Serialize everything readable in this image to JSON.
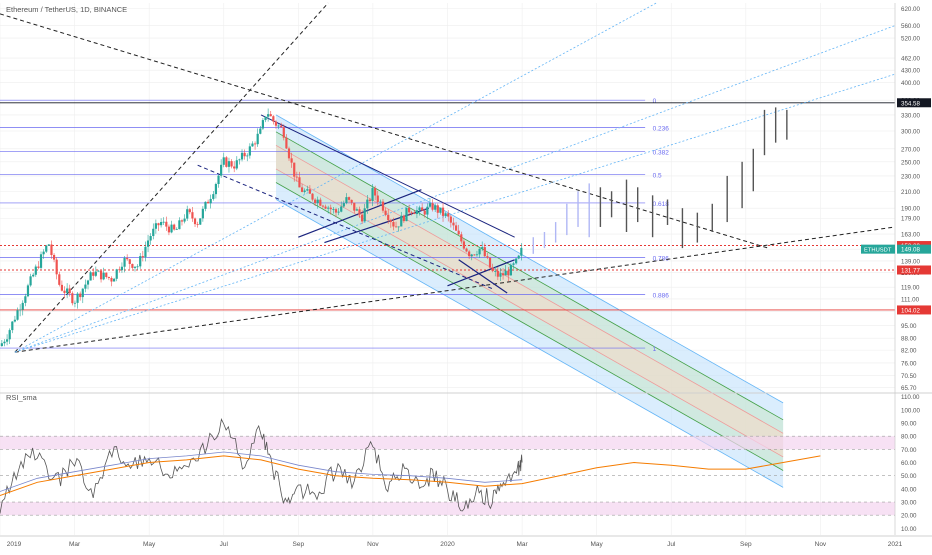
{
  "symbol_title": "Ethereum / TetherUS, 1D, BINANCE",
  "rsi_title": "RSI_sma",
  "colors": {
    "up": "#26a69a",
    "down": "#ef5350",
    "fib": "#6a6af0",
    "red_level": "#e53935",
    "channel_fill": "#bbdefb",
    "channel_mid": "#c8e6c9",
    "channel_core": "#f8d9c4",
    "rsi_line": "#555555",
    "rsi_sma": "#f57c00",
    "rsi_sma2": "#7986cb",
    "rsi_band": "#f3d4f0",
    "grid": "#eeeeee",
    "ghost": "#b0b7f5"
  },
  "chart_data": [
    {
      "type": "candlestick",
      "title": "Ethereum / TetherUS, 1D, BINANCE",
      "x_ticks": [
        "2019",
        "Mar",
        "May",
        "Jul",
        "Sep",
        "Nov",
        "2020",
        "Mar",
        "May",
        "Jul",
        "Sep",
        "Nov",
        "2021"
      ],
      "y_scale": "log",
      "y_ticks": [
        620.0,
        560.0,
        520.0,
        462.0,
        430.0,
        400.0,
        360.0,
        330.0,
        300.0,
        270.0,
        250.0,
        230.0,
        210.0,
        190.0,
        179.0,
        163.0,
        149.0,
        139.0,
        130.0,
        119.0,
        111.0,
        103.0,
        95.0,
        88.0,
        82.0,
        76.0,
        70.5,
        65.7
      ],
      "fib_levels": [
        {
          "label": "0",
          "price": 360.0
        },
        {
          "label": "0.236",
          "price": 306.0
        },
        {
          "label": "0.382",
          "price": 266.0
        },
        {
          "label": "0.5",
          "price": 232.0
        },
        {
          "label": "0.618",
          "price": 196.0
        },
        {
          "label": "0.786",
          "price": 142.0
        },
        {
          "label": "0.886",
          "price": 114.0
        },
        {
          "label": "1",
          "price": 83.0
        }
      ],
      "price_labels": [
        {
          "text": "354.58",
          "price": 354.58,
          "color": "#131722"
        },
        {
          "text": "152.29",
          "price": 152.29,
          "color": "#e53935"
        },
        {
          "text": "149.08",
          "price": 149.08,
          "color": "#26a69a",
          "prefix": "ETHUSDT"
        },
        {
          "text": "131.77",
          "price": 131.77,
          "color": "#e53935"
        },
        {
          "text": "104.02",
          "price": 104.02,
          "color": "#e53935"
        }
      ],
      "horizontal_levels": [
        {
          "price": 354.58,
          "style": "solid",
          "color": "#131722"
        },
        {
          "price": 152.29,
          "style": "dotted",
          "color": "#e53935"
        },
        {
          "price": 131.77,
          "style": "dotted",
          "color": "#e53935"
        },
        {
          "price": 104.02,
          "style": "solid",
          "color": "#e53935"
        }
      ],
      "price_series": [
        [
          0,
          84
        ],
        [
          0.2,
          90
        ],
        [
          0.5,
          105
        ],
        [
          1.0,
          135
        ],
        [
          1.3,
          155
        ],
        [
          1.6,
          120
        ],
        [
          2.0,
          110
        ],
        [
          2.5,
          130
        ],
        [
          3.0,
          125
        ],
        [
          3.3,
          140
        ],
        [
          3.7,
          135
        ],
        [
          4.0,
          160
        ],
        [
          4.3,
          175
        ],
        [
          4.7,
          165
        ],
        [
          5.0,
          185
        ],
        [
          5.3,
          175
        ],
        [
          5.7,
          210
        ],
        [
          6.0,
          250
        ],
        [
          6.3,
          245
        ],
        [
          6.7,
          270
        ],
        [
          7.0,
          300
        ],
        [
          7.15,
          340
        ],
        [
          7.3,
          320
        ],
        [
          7.6,
          300
        ],
        [
          7.8,
          250
        ],
        [
          8.0,
          215
        ],
        [
          8.3,
          205
        ],
        [
          8.7,
          195
        ],
        [
          9.0,
          185
        ],
        [
          9.3,
          200
        ],
        [
          9.7,
          180
        ],
        [
          10.0,
          210
        ],
        [
          10.3,
          190
        ],
        [
          10.6,
          170
        ],
        [
          11.0,
          190
        ],
        [
          11.3,
          185
        ],
        [
          11.6,
          192
        ],
        [
          12.0,
          180
        ],
        [
          12.3,
          160
        ],
        [
          12.6,
          145
        ],
        [
          12.9,
          150
        ],
        [
          13.2,
          130
        ],
        [
          13.4,
          127
        ],
        [
          13.7,
          132
        ],
        [
          13.9,
          140
        ],
        [
          14.0,
          149
        ]
      ],
      "projection_bars": [
        [
          14.3,
          145,
          160
        ],
        [
          14.6,
          150,
          165
        ],
        [
          14.9,
          155,
          175
        ],
        [
          15.2,
          162,
          195
        ],
        [
          15.5,
          170,
          210
        ],
        [
          15.8,
          160,
          220
        ],
        [
          16.1,
          170,
          215
        ],
        [
          16.4,
          180,
          210
        ],
        [
          16.8,
          165,
          225
        ],
        [
          17.1,
          175,
          215
        ],
        [
          17.5,
          160,
          205
        ],
        [
          17.9,
          172,
          200
        ],
        [
          18.3,
          150,
          190
        ],
        [
          18.7,
          155,
          185
        ],
        [
          19.1,
          165,
          195
        ],
        [
          19.5,
          175,
          230
        ],
        [
          19.9,
          190,
          250
        ],
        [
          20.2,
          210,
          270
        ],
        [
          20.5,
          260,
          340
        ],
        [
          20.8,
          280,
          345
        ],
        [
          21.1,
          285,
          340
        ]
      ],
      "rsi": {
        "title": "RSI_sma",
        "y_ticks": [
          110.0,
          100.0,
          90.0,
          80.0,
          70.0,
          60.0,
          50.0,
          40.0,
          30.0,
          20.0,
          10.0
        ],
        "band_upper": [
          70.0,
          80.0
        ],
        "band_lower": [
          20.0,
          30.0
        ],
        "rsi_values": [
          [
            0,
            25
          ],
          [
            0.5,
            55
          ],
          [
            1.0,
            70
          ],
          [
            1.5,
            45
          ],
          [
            2.0,
            60
          ],
          [
            2.5,
            40
          ],
          [
            3.0,
            70
          ],
          [
            3.5,
            55
          ],
          [
            4.0,
            65
          ],
          [
            4.5,
            50
          ],
          [
            5.0,
            62
          ],
          [
            5.5,
            72
          ],
          [
            6.0,
            90
          ],
          [
            6.5,
            60
          ],
          [
            7.0,
            85
          ],
          [
            7.3,
            55
          ],
          [
            7.7,
            30
          ],
          [
            8.0,
            40
          ],
          [
            8.5,
            35
          ],
          [
            9.0,
            55
          ],
          [
            9.5,
            45
          ],
          [
            10.0,
            75
          ],
          [
            10.4,
            40
          ],
          [
            10.8,
            55
          ],
          [
            11.2,
            45
          ],
          [
            11.6,
            50
          ],
          [
            12.0,
            40
          ],
          [
            12.4,
            25
          ],
          [
            12.8,
            40
          ],
          [
            13.2,
            30
          ],
          [
            13.5,
            45
          ],
          [
            13.9,
            55
          ],
          [
            14.0,
            60
          ]
        ],
        "sma_values": [
          [
            0,
            35
          ],
          [
            1.0,
            45
          ],
          [
            2.0,
            50
          ],
          [
            3.0,
            55
          ],
          [
            4.0,
            60
          ],
          [
            5.0,
            62
          ],
          [
            6.0,
            65
          ],
          [
            7.0,
            62
          ],
          [
            8.0,
            55
          ],
          [
            9.0,
            50
          ],
          [
            10.0,
            48
          ],
          [
            11.0,
            47
          ],
          [
            12.0,
            45
          ],
          [
            13.0,
            42
          ],
          [
            14.0,
            44
          ],
          [
            15.0,
            50
          ],
          [
            16.0,
            56
          ],
          [
            17.0,
            60
          ],
          [
            18.0,
            58
          ],
          [
            19.0,
            55
          ],
          [
            20.0,
            55
          ],
          [
            21.0,
            60
          ],
          [
            22.0,
            65
          ]
        ]
      }
    }
  ]
}
